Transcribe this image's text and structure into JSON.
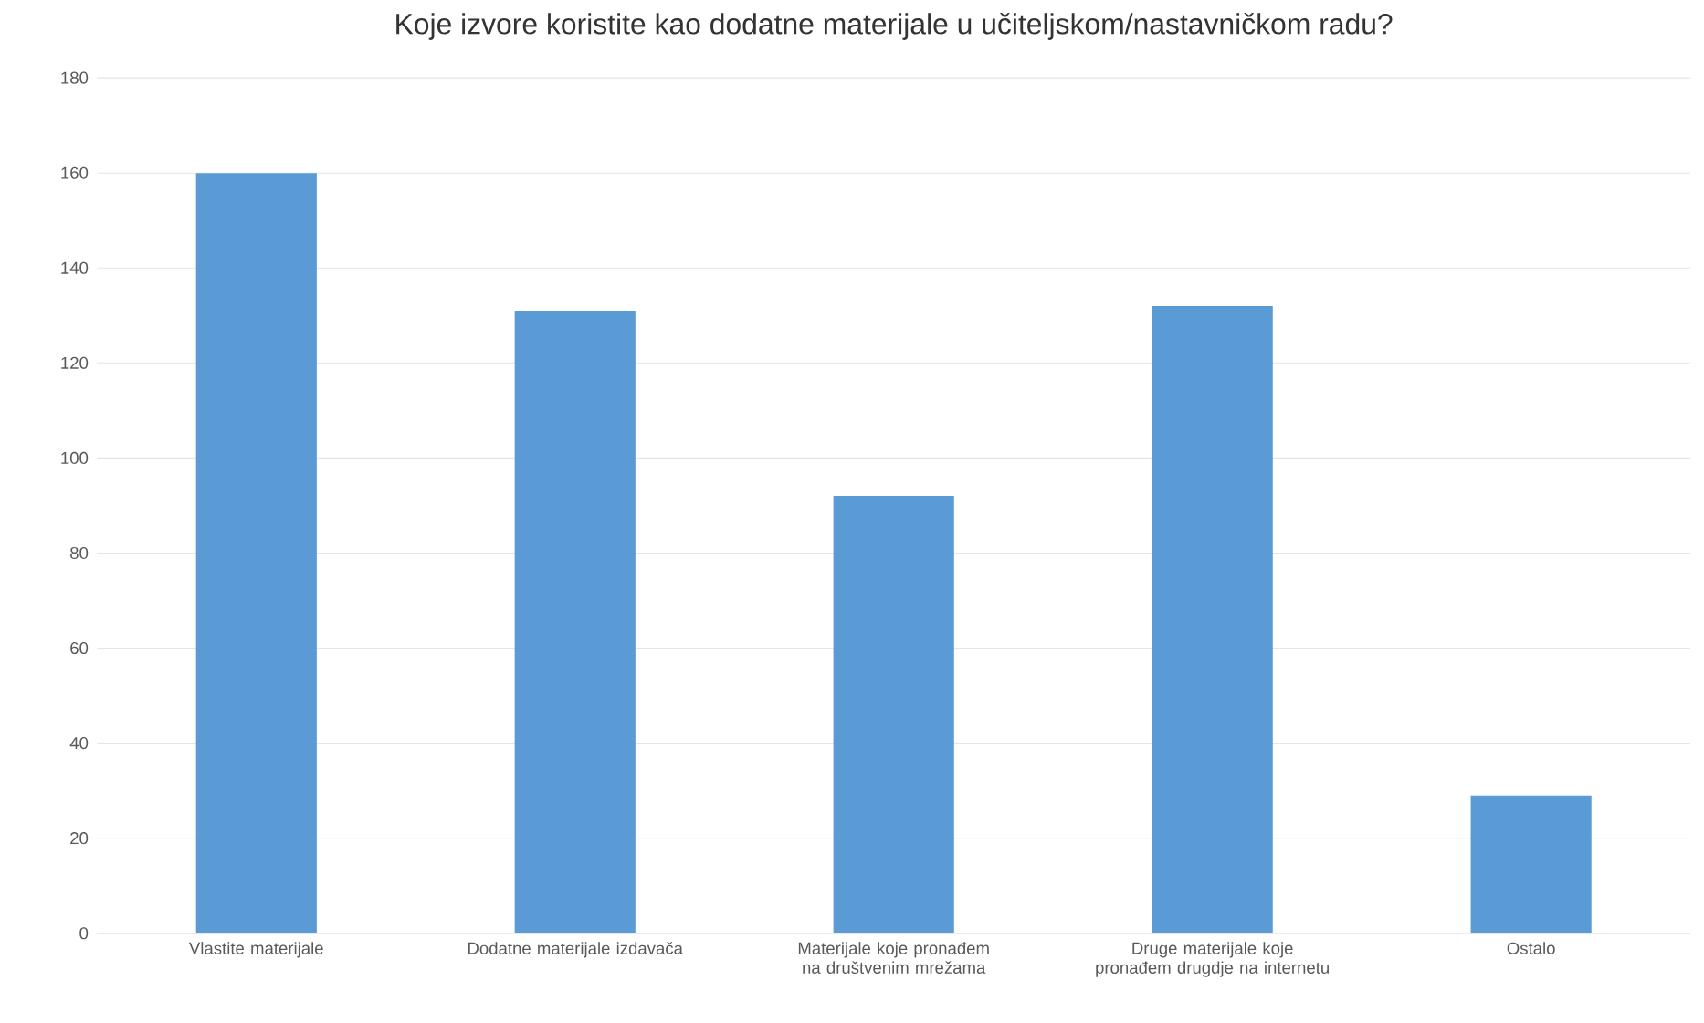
{
  "chart_data": {
    "type": "bar",
    "title": "Koje izvore koristite kao dodatne materijale u učiteljskom/nastavničkom radu?",
    "categories": [
      "Vlastite materijale",
      "Dodatne materijale izdavača",
      "Materijale koje pronađem na društvenim mrežama",
      "Druge materijale koje pronađem drugdje na internetu",
      "Ostalo"
    ],
    "values": [
      160,
      131,
      92,
      132,
      29
    ],
    "color": "#5b9bd5",
    "ylim": [
      0,
      180
    ],
    "yticks": [
      0,
      20,
      40,
      60,
      80,
      100,
      120,
      140,
      160,
      180
    ],
    "grid": "y"
  }
}
